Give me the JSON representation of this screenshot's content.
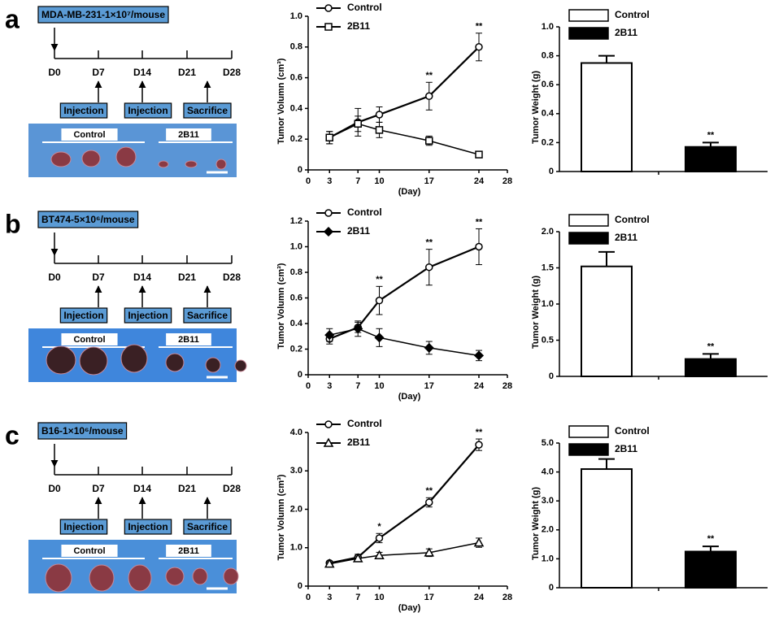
{
  "panels": [
    {
      "label": "a",
      "cell_line": "MDA-MB-231-1×10⁷/mouse",
      "timeline": [
        "D0",
        "D7",
        "D14",
        "D21",
        "D28"
      ],
      "events": [
        "Injection",
        "Injection",
        "Sacrifice"
      ],
      "photo_labels": [
        "Control",
        "2B11"
      ]
    },
    {
      "label": "b",
      "cell_line": "BT474-5×10⁶/mouse",
      "timeline": [
        "D0",
        "D7",
        "D14",
        "D21",
        "D28"
      ],
      "events": [
        "Injection",
        "Injection",
        "Sacrifice"
      ],
      "photo_labels": [
        "Control",
        "2B11"
      ]
    },
    {
      "label": "c",
      "cell_line": "B16-1×10⁶/mouse",
      "timeline": [
        "D0",
        "D7",
        "D14",
        "D21",
        "D28"
      ],
      "events": [
        "Injection",
        "Injection",
        "Sacrifice"
      ],
      "photo_labels": [
        "Control",
        "2B11"
      ]
    }
  ],
  "chart_data": [
    {
      "type": "line",
      "xlabel": "(Day)",
      "ylabel": "Tumor Volumn (cm³)",
      "x": [
        3,
        7,
        10,
        17,
        24
      ],
      "xlim": [
        0,
        28
      ],
      "xticks": [
        0,
        3,
        7,
        10,
        17,
        24,
        28
      ],
      "ylim": [
        0,
        1
      ],
      "yticks": [
        0,
        0.2,
        0.4,
        0.6,
        0.8,
        {
          "value": 1,
          "label": "1.0"
        }
      ],
      "legend": "upper left",
      "series": [
        {
          "name": "Control",
          "color": "#000000",
          "marker": "circle",
          "marker_fill": "#ffffff",
          "values": [
            0.21,
            0.31,
            0.36,
            0.48,
            0.8
          ],
          "errors": [
            0.04,
            0.09,
            0.05,
            0.09,
            0.09
          ]
        },
        {
          "name": "2B11",
          "color": "#000000",
          "marker": "square",
          "marker_fill": "#ffffff",
          "values": [
            0.21,
            0.3,
            0.26,
            0.19,
            0.1
          ],
          "errors": [
            0.04,
            0.05,
            0.05,
            0.03,
            0.015
          ]
        }
      ],
      "annotations": [
        {
          "x": 17,
          "text": "**"
        },
        {
          "x": 24,
          "text": "**"
        }
      ]
    },
    {
      "type": "bar",
      "ylabel": "Tumor Weight (g)",
      "ylim": [
        0,
        1
      ],
      "yticks": [
        0,
        0.2,
        0.4,
        0.6,
        0.8,
        {
          "value": 1,
          "label": "1.0"
        }
      ],
      "legend": "upper right",
      "series": [
        {
          "name": "Control",
          "color": "#ffffff",
          "values": [
            0.75
          ],
          "errors": [
            0.05
          ]
        },
        {
          "name": "2B11",
          "color": "#000000",
          "values": [
            0.17
          ],
          "errors": [
            0.03
          ],
          "annotation": "**"
        }
      ]
    },
    {
      "type": "line",
      "xlabel": "(Day)",
      "ylabel": "Tumor Volumn (cm³)",
      "x": [
        3,
        7,
        10,
        17,
        24
      ],
      "xlim": [
        0,
        28
      ],
      "xticks": [
        0,
        3,
        7,
        10,
        17,
        24,
        28
      ],
      "ylim": [
        0,
        1.2
      ],
      "yticks": [
        0,
        0.2,
        0.4,
        0.6,
        0.8,
        {
          "value": 1,
          "label": "1.0"
        },
        1.2
      ],
      "legend": "upper left",
      "series": [
        {
          "name": "Control",
          "color": "#000000",
          "marker": "circle",
          "marker_fill": "#ffffff",
          "values": [
            0.28,
            0.37,
            0.58,
            0.84,
            1.0
          ],
          "errors": [
            0.04,
            0.04,
            0.11,
            0.14,
            0.14
          ]
        },
        {
          "name": "2B11",
          "color": "#000000",
          "marker": "diamond",
          "marker_fill": "#000000",
          "values": [
            0.31,
            0.36,
            0.29,
            0.21,
            0.15
          ],
          "errors": [
            0.05,
            0.06,
            0.07,
            0.05,
            0.04
          ]
        }
      ],
      "annotations": [
        {
          "x": 10,
          "text": "**"
        },
        {
          "x": 17,
          "text": "**"
        },
        {
          "x": 24,
          "text": "**"
        }
      ]
    },
    {
      "type": "bar",
      "ylabel": "Tumor Weight (g)",
      "ylim": [
        0,
        2
      ],
      "yticks": [
        0,
        0.5,
        {
          "value": 1,
          "label": "1.0"
        },
        1.5,
        {
          "value": 2,
          "label": "2.0"
        }
      ],
      "legend": "upper right",
      "series": [
        {
          "name": "Control",
          "color": "#ffffff",
          "values": [
            1.52
          ],
          "errors": [
            0.2
          ]
        },
        {
          "name": "2B11",
          "color": "#000000",
          "values": [
            0.24
          ],
          "errors": [
            0.07
          ],
          "annotation": "**"
        }
      ]
    },
    {
      "type": "line",
      "xlabel": "(Day)",
      "ylabel": "Tumor Volumn (cm³)",
      "x": [
        3,
        7,
        10,
        17,
        24
      ],
      "xlim": [
        0,
        28
      ],
      "xticks": [
        0,
        3,
        7,
        10,
        17,
        24,
        28
      ],
      "ylim": [
        0,
        4
      ],
      "yticks": [
        0,
        {
          "value": 1,
          "label": "1.0"
        },
        {
          "value": 2,
          "label": "2.0"
        },
        {
          "value": 3,
          "label": "3.0"
        },
        {
          "value": 4,
          "label": "4.0"
        }
      ],
      "legend": "upper left",
      "series": [
        {
          "name": "Control",
          "color": "#000000",
          "marker": "circle",
          "marker_fill": "#ffffff",
          "values": [
            0.6,
            0.75,
            1.25,
            2.18,
            3.68
          ],
          "errors": [
            0.05,
            0.08,
            0.12,
            0.12,
            0.15
          ]
        },
        {
          "name": "2B11",
          "color": "#000000",
          "marker": "triangle",
          "marker_fill": "#ffffff",
          "values": [
            0.58,
            0.72,
            0.8,
            0.87,
            1.13
          ],
          "errors": [
            0.05,
            0.06,
            0.08,
            0.1,
            0.12
          ]
        }
      ],
      "annotations": [
        {
          "x": 10,
          "text": "*"
        },
        {
          "x": 17,
          "text": "**"
        },
        {
          "x": 24,
          "text": "**"
        }
      ]
    },
    {
      "type": "bar",
      "ylabel": "Tumor Weight (g)",
      "ylim": [
        0,
        5
      ],
      "yticks": [
        0,
        {
          "value": 1,
          "label": "1.0"
        },
        {
          "value": 2,
          "label": "2.0"
        },
        {
          "value": 3,
          "label": "3.0"
        },
        {
          "value": 4,
          "label": "4.0"
        },
        {
          "value": 5,
          "label": "5.0"
        }
      ],
      "legend": "upper right",
      "series": [
        {
          "name": "Control",
          "color": "#ffffff",
          "values": [
            4.1
          ],
          "errors": [
            0.35
          ]
        },
        {
          "name": "2B11",
          "color": "#000000",
          "values": [
            1.25
          ],
          "errors": [
            0.18
          ],
          "annotation": "**"
        }
      ]
    }
  ]
}
